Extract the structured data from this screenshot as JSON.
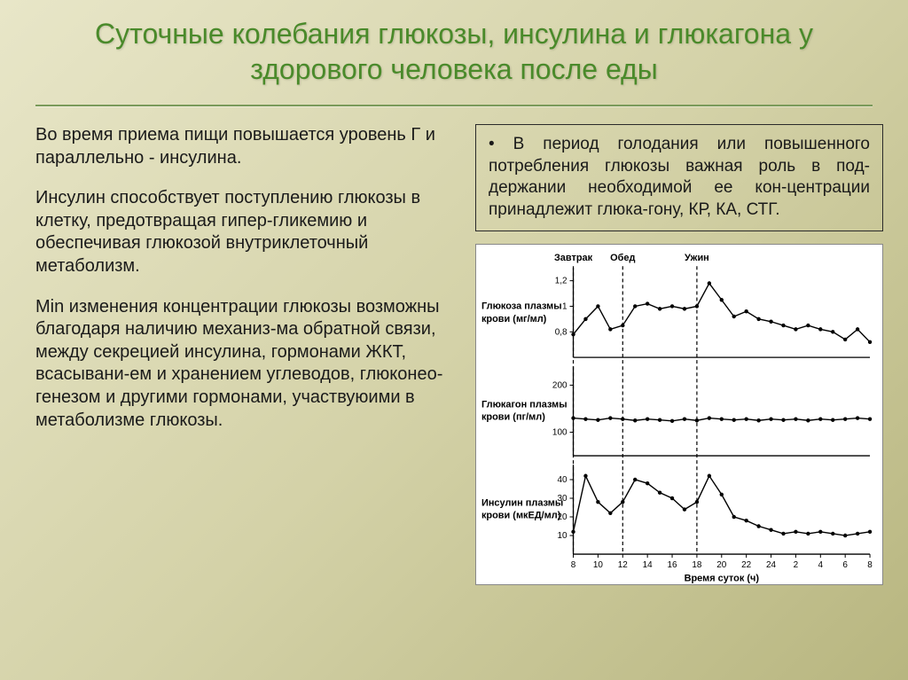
{
  "title": "Суточные колебания глюкозы, инсулина и глюкагона у здорового человека после еды",
  "left": {
    "p1": "Во время приема пищи повышается уровень Г и параллельно - инсулина.",
    "p2": "Инсулин способствует поступлению глюкозы в клетку, предотвращая гипер-гликемию и обеспечивая глюкозой внутриклеточный метаболизм.",
    "p3": "Min изменения концентрации глюкозы возможны благодаря наличию механиз-ма обратной связи, между секрецией инсулина, гормонами ЖКТ, всасывани-ем и хранением углеводов, глюконео-генезом и другими гормонами, участвуюими в метаболизме глюкозы."
  },
  "infobox": "• В период голодания или повышенного потребления глюкозы важная роль в под-держании необходимой ее кон-центрации принадлежит глюка-гону, КР, КА, СТГ.",
  "chart": {
    "meals": [
      {
        "label": "Завтрак",
        "x": 8
      },
      {
        "label": "Обед",
        "x": 12
      },
      {
        "label": "Ужин",
        "x": 18
      }
    ],
    "x_ticks": [
      8,
      10,
      12,
      14,
      16,
      18,
      20,
      22,
      24,
      2,
      4,
      6,
      8
    ],
    "x_label": "Время суток (ч)",
    "panels": [
      {
        "label_l1": "Глюкоза плазмы",
        "label_l2": "крови (мг/мл)",
        "ymin": 0.6,
        "ymax": 1.3,
        "yticks": [
          0.8,
          1.0,
          1.2
        ],
        "data": [
          0.78,
          0.9,
          1.0,
          0.82,
          0.85,
          1.0,
          1.02,
          0.98,
          1.0,
          0.98,
          1.0,
          1.18,
          1.05,
          0.92,
          0.96,
          0.9,
          0.88,
          0.85,
          0.82,
          0.85,
          0.82,
          0.8,
          0.74,
          0.82,
          0.72
        ]
      },
      {
        "label_l1": "Глюкагон плазмы",
        "label_l2": "крови (пг/мл)",
        "ymin": 50,
        "ymax": 240,
        "yticks": [
          100,
          200
        ],
        "data": [
          130,
          128,
          126,
          130,
          128,
          125,
          128,
          126,
          124,
          128,
          125,
          130,
          128,
          126,
          128,
          125,
          128,
          126,
          128,
          125,
          128,
          126,
          128,
          130,
          128
        ]
      },
      {
        "label_l1": "Инсулин плазмы",
        "label_l2": "крови (мкЕД/мл)",
        "ymin": 0,
        "ymax": 48,
        "yticks": [
          10,
          20,
          30,
          40
        ],
        "data": [
          12,
          42,
          28,
          22,
          28,
          40,
          38,
          33,
          30,
          24,
          28,
          42,
          32,
          20,
          18,
          15,
          13,
          11,
          12,
          11,
          12,
          11,
          10,
          11,
          12
        ]
      }
    ],
    "colors": {
      "bg": "#ffffff",
      "line": "#000000",
      "axis": "#000000"
    }
  }
}
